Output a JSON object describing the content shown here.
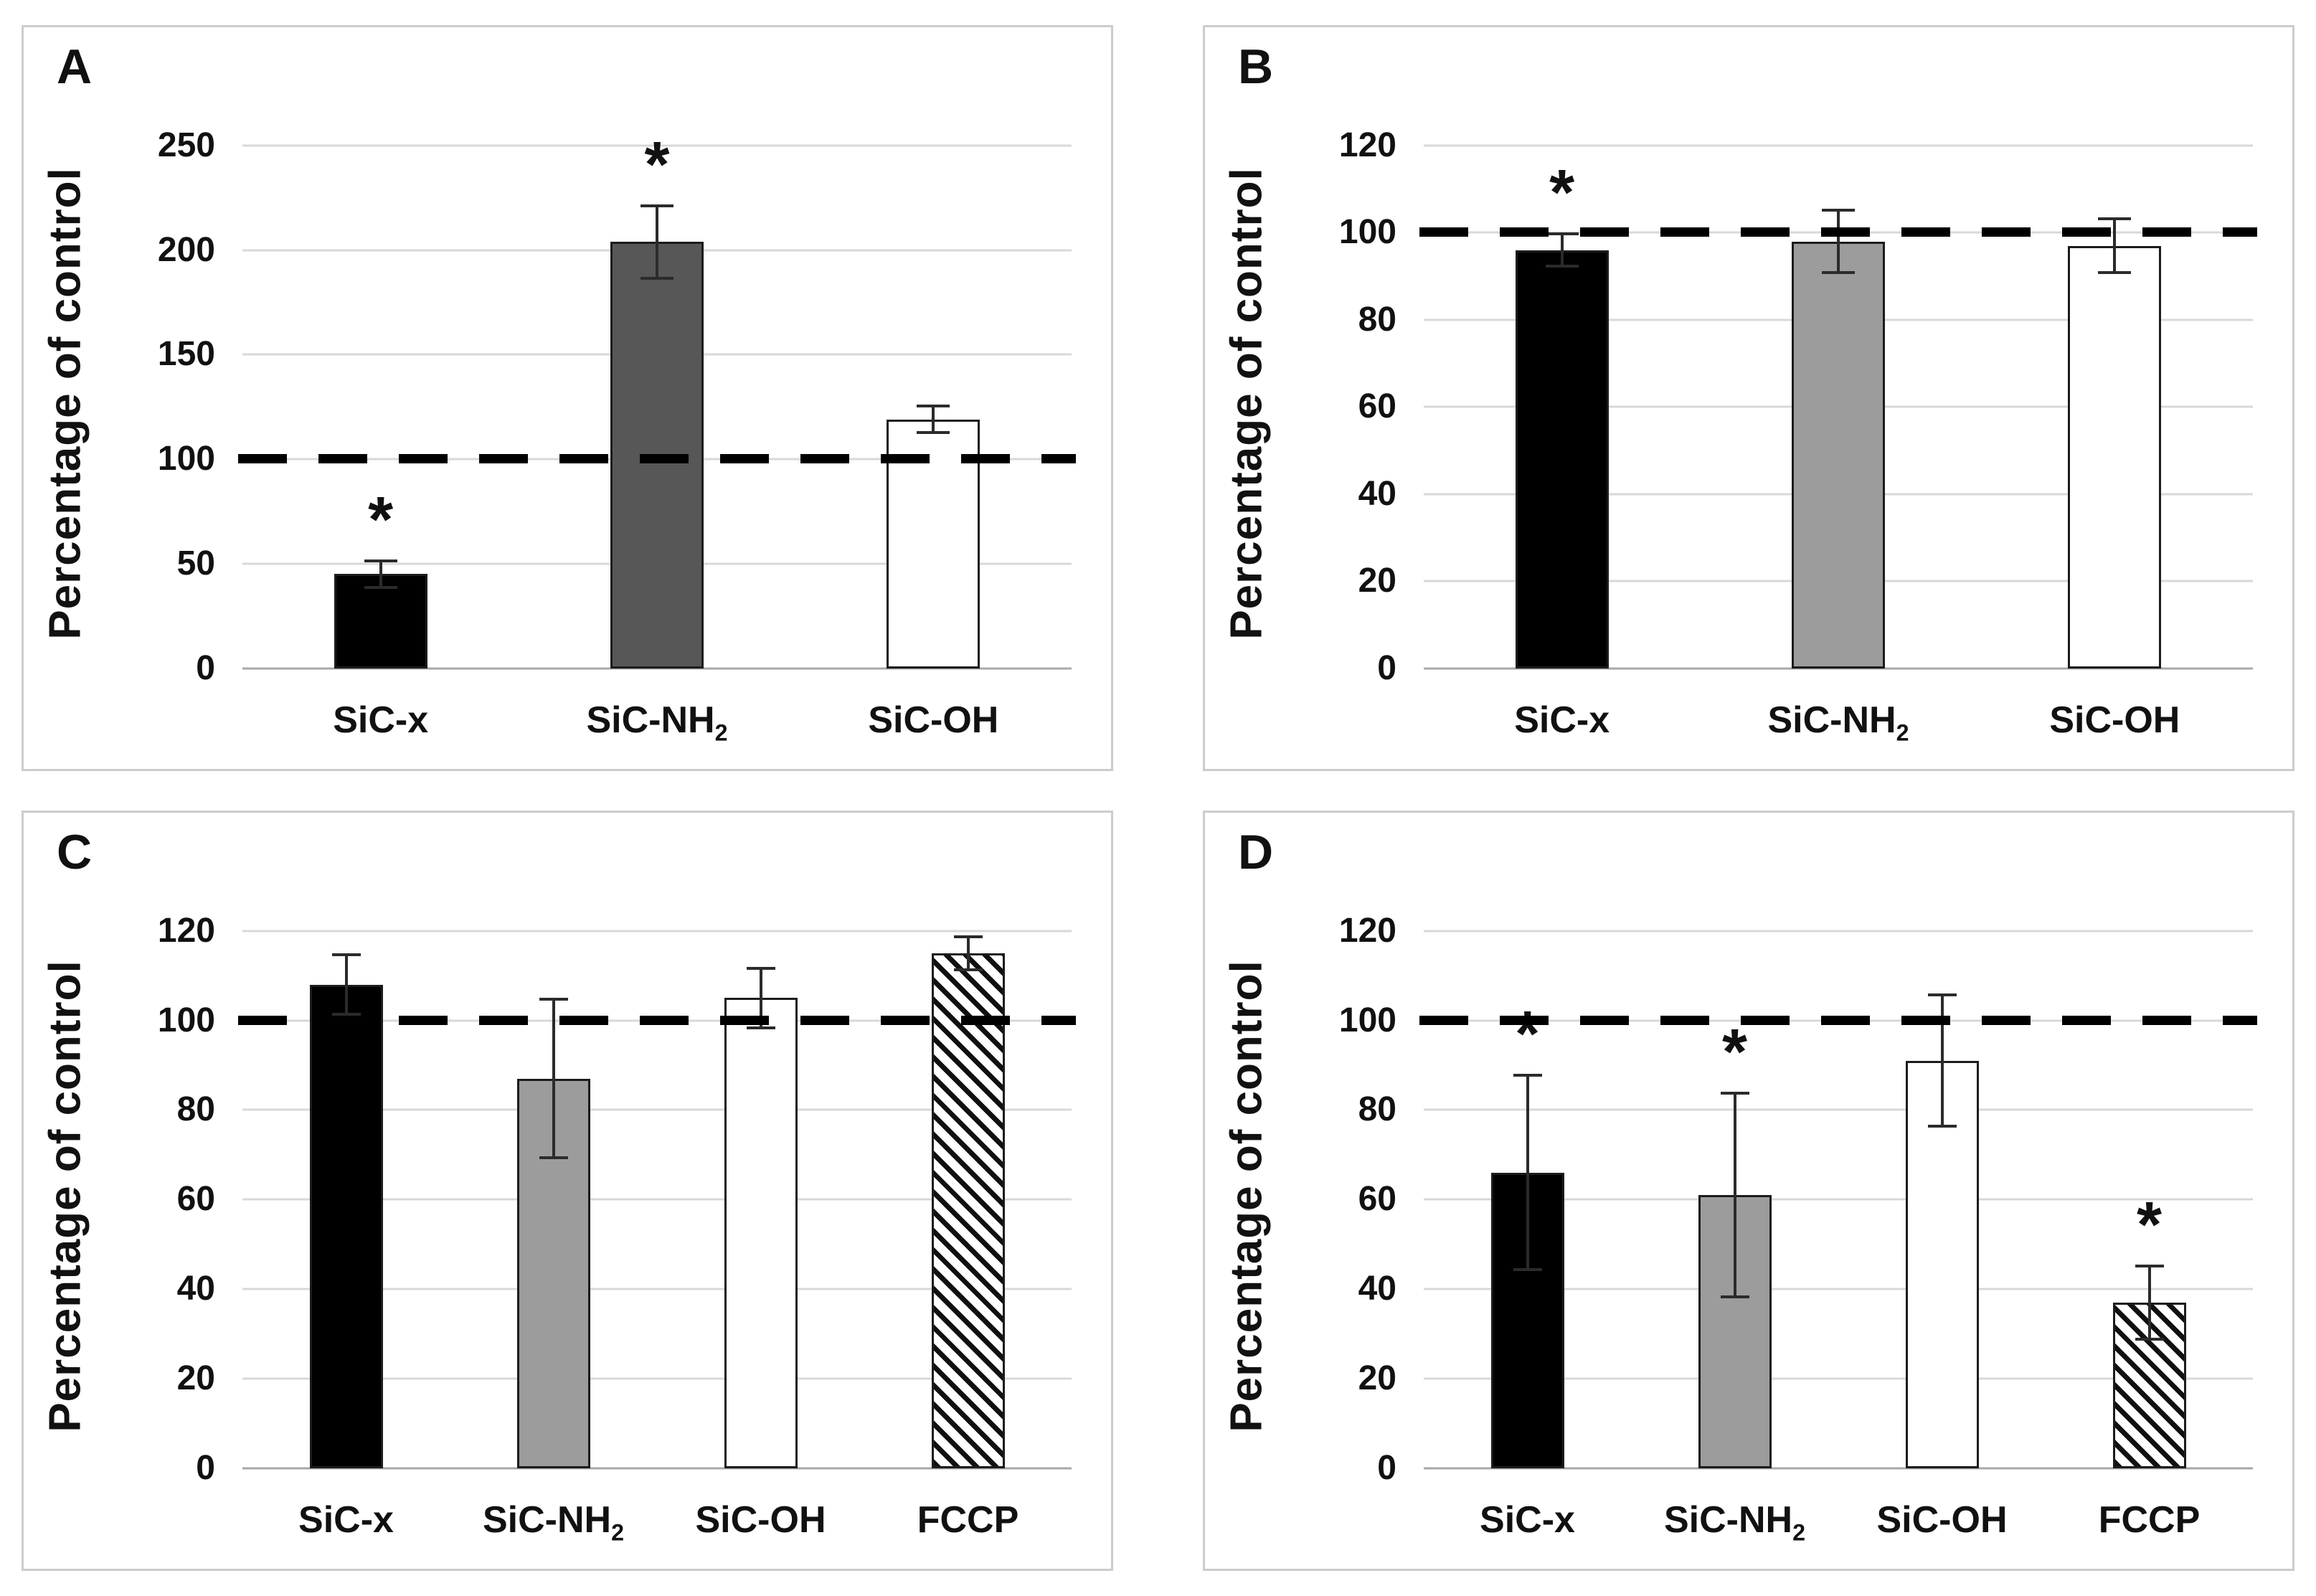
{
  "figure": {
    "ylabel": "Percentage of control",
    "significance_marker": "*",
    "reference_value": 100
  },
  "colors": {
    "black": "#000000",
    "darkgray": "#575757",
    "gray": "#9c9c9c",
    "white": "#ffffff",
    "hatch_foreground": "#101010",
    "hatch_background": "#ffffff",
    "bar_border": "#1c1c1c",
    "gridline": "#d8d8d8",
    "zero_line": "#a8a8a8",
    "error_bar": "#2b2b2b",
    "reference_line": "#000000",
    "panel_border": "#cccccc"
  },
  "chart_data": [
    {
      "panel": "A",
      "type": "bar",
      "ylabel": "Percentage of control",
      "xlabel": "",
      "ylim": [
        0,
        250
      ],
      "yticks": [
        0,
        50,
        100,
        150,
        200,
        250
      ],
      "reference_line": 100,
      "grid": true,
      "legend": "none",
      "bars": [
        {
          "label": "SiC-x",
          "sub": "",
          "value": 45,
          "error": 7,
          "significant": true,
          "fill": "black"
        },
        {
          "label": "SiC-NH",
          "sub": "2",
          "value": 204,
          "error": 18,
          "significant": true,
          "fill": "darkgray"
        },
        {
          "label": "SiC-OH",
          "sub": "",
          "value": 119,
          "error": 7,
          "significant": false,
          "fill": "white"
        }
      ]
    },
    {
      "panel": "B",
      "type": "bar",
      "ylabel": "Percentage of control",
      "xlabel": "",
      "ylim": [
        0,
        120
      ],
      "yticks": [
        0,
        20,
        40,
        60,
        80,
        100,
        120
      ],
      "reference_line": 100,
      "grid": true,
      "legend": "none",
      "bars": [
        {
          "label": "SiC-x",
          "sub": "",
          "value": 96,
          "error": 4,
          "significant": true,
          "fill": "black"
        },
        {
          "label": "SiC-NH",
          "sub": "2",
          "value": 98,
          "error": 7.5,
          "significant": false,
          "fill": "gray"
        },
        {
          "label": "SiC-OH",
          "sub": "",
          "value": 97,
          "error": 6.5,
          "significant": false,
          "fill": "white"
        }
      ]
    },
    {
      "panel": "C",
      "type": "bar",
      "ylabel": "Percentage of control",
      "xlabel": "",
      "ylim": [
        0,
        120
      ],
      "yticks": [
        0,
        20,
        40,
        60,
        80,
        100,
        120
      ],
      "reference_line": 100,
      "grid": true,
      "legend": "none",
      "bars": [
        {
          "label": "SiC-x",
          "sub": "",
          "value": 108,
          "error": 7,
          "significant": false,
          "fill": "black"
        },
        {
          "label": "SiC-NH",
          "sub": "2",
          "value": 87,
          "error": 18,
          "significant": false,
          "fill": "gray"
        },
        {
          "label": "SiC-OH",
          "sub": "",
          "value": 105,
          "error": 7,
          "significant": false,
          "fill": "white"
        },
        {
          "label": "FCCP",
          "sub": "",
          "value": 115,
          "error": 4,
          "significant": false,
          "fill": "hatch"
        }
      ]
    },
    {
      "panel": "D",
      "type": "bar",
      "ylabel": "Percentage of control",
      "xlabel": "",
      "ylim": [
        0,
        120
      ],
      "yticks": [
        0,
        20,
        40,
        60,
        80,
        100,
        120
      ],
      "reference_line": 100,
      "grid": true,
      "legend": "none",
      "bars": [
        {
          "label": "SiC-x",
          "sub": "",
          "value": 66,
          "error": 22,
          "significant": true,
          "fill": "black"
        },
        {
          "label": "SiC-NH",
          "sub": "2",
          "value": 61,
          "error": 23,
          "significant": true,
          "fill": "gray"
        },
        {
          "label": "SiC-OH",
          "sub": "",
          "value": 91,
          "error": 15,
          "significant": false,
          "fill": "white"
        },
        {
          "label": "FCCP",
          "sub": "",
          "value": 37,
          "error": 8.5,
          "significant": true,
          "fill": "hatch"
        }
      ]
    }
  ]
}
